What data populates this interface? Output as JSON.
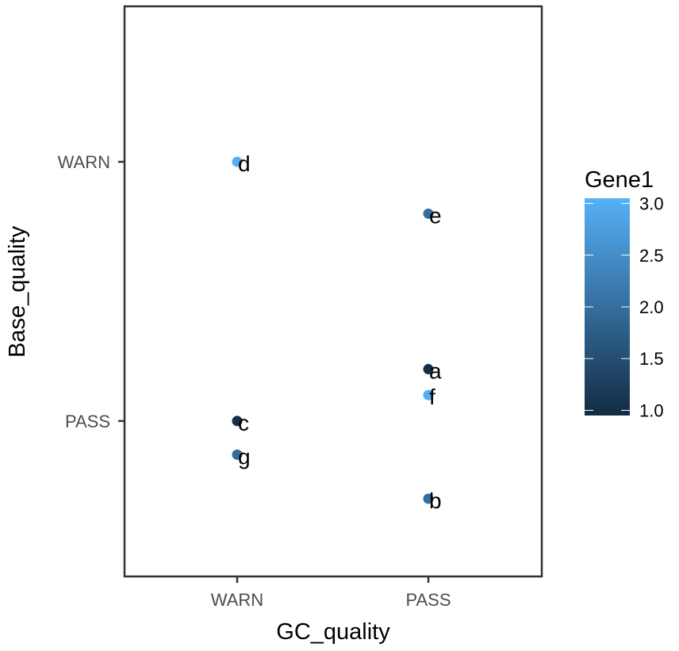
{
  "chart_data": {
    "type": "scatter",
    "xlabel": "GC_quality",
    "ylabel": "Base_quality",
    "x_categories": [
      "WARN",
      "PASS"
    ],
    "y_categories": [
      "PASS",
      "WARN"
    ],
    "ylim": [
      0.4,
      2.6
    ],
    "grid": false,
    "legend_position": "right",
    "color_scale": {
      "title": "Gene1",
      "min": 0.95,
      "max": 3.05,
      "breaks": [
        "1.0",
        "1.5",
        "2.0",
        "2.5",
        "3.0"
      ],
      "break_values": [
        1.0,
        1.5,
        2.0,
        2.5,
        3.0
      ],
      "low_color": "#132b43",
      "high_color": "#56b1f7"
    },
    "points": [
      {
        "label": "a",
        "x": "PASS",
        "x_jitter": 0.0,
        "y": 1.2,
        "gene1": 1.0
      },
      {
        "label": "b",
        "x": "PASS",
        "x_jitter": 0.0,
        "y": 0.7,
        "gene1": 2.0
      },
      {
        "label": "c",
        "x": "WARN",
        "x_jitter": 0.0,
        "y": 1.0,
        "gene1": 1.0
      },
      {
        "label": "d",
        "x": "WARN",
        "x_jitter": 0.0,
        "y": 2.0,
        "gene1": 3.0
      },
      {
        "label": "e",
        "x": "PASS",
        "x_jitter": 0.0,
        "y": 1.8,
        "gene1": 2.0
      },
      {
        "label": "f",
        "x": "PASS",
        "x_jitter": 0.0,
        "y": 1.1,
        "gene1": 3.0
      },
      {
        "label": "g",
        "x": "WARN",
        "x_jitter": 0.0,
        "y": 0.87,
        "gene1": 2.0
      }
    ]
  }
}
